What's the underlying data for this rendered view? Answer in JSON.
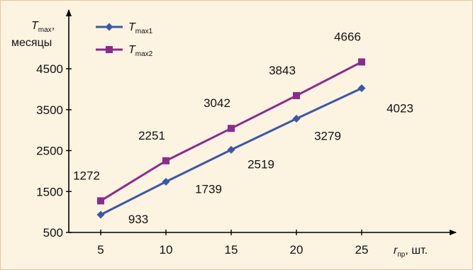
{
  "chart_data": {
    "type": "line",
    "x": [
      5,
      10,
      15,
      20,
      25
    ],
    "xlim": [
      0,
      30
    ],
    "ylim": [
      500,
      5500
    ],
    "yticks": [
      500,
      1500,
      2500,
      3500,
      4500
    ],
    "xticks": [
      5,
      10,
      15,
      20,
      25
    ],
    "ylabel": {
      "main": "T",
      "sub": "max",
      "suffix": ",",
      "line2": "месяцы"
    },
    "xlabel": {
      "main": "r",
      "sub": "пр",
      "suffix": ", шт."
    },
    "grid": false,
    "legend_position": "top-left",
    "series": [
      {
        "name": {
          "main": "T",
          "sub": "max1"
        },
        "values": [
          933,
          1739,
          2519,
          3279,
          4023
        ],
        "labels": [
          "933",
          "1739",
          "2519",
          "3279",
          "4023"
        ],
        "color": "#3a58a8",
        "marker": "diamond"
      },
      {
        "name": {
          "main": "T",
          "sub": "max2"
        },
        "values": [
          1272,
          2251,
          3042,
          3843,
          4666
        ],
        "labels": [
          "1272",
          "2251",
          "3042",
          "3843",
          "4666"
        ],
        "color": "#8b2b8f",
        "marker": "square"
      }
    ]
  }
}
